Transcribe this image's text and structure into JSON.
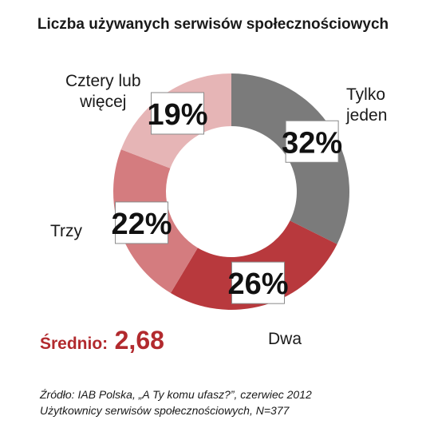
{
  "chart_data": {
    "type": "pie",
    "title": "Liczba używanych serwisów społecznościowych",
    "categories": [
      "Tylko jeden",
      "Dwa",
      "Trzy",
      "Cztery lub więcej"
    ],
    "values": [
      32,
      26,
      22,
      19
    ],
    "value_labels": [
      "32%",
      "26%",
      "22%",
      "19%"
    ],
    "category_lines": [
      [
        "Tylko",
        "jeden"
      ],
      [
        "Dwa"
      ],
      [
        "Trzy"
      ],
      [
        "Cztery lub",
        "więcej"
      ]
    ],
    "colors": [
      "#7b7b7b",
      "#b8393d",
      "#d47c7f",
      "#e6b5b6"
    ],
    "donut": true
  },
  "average": {
    "label": "Średnio:",
    "value": "2,68"
  },
  "source": {
    "line1": "Źródło: IAB Polska, „A Ty komu ufasz?”, czerwiec 2012",
    "line2": "Użytkownicy serwisów społecznościowych, N=377"
  }
}
